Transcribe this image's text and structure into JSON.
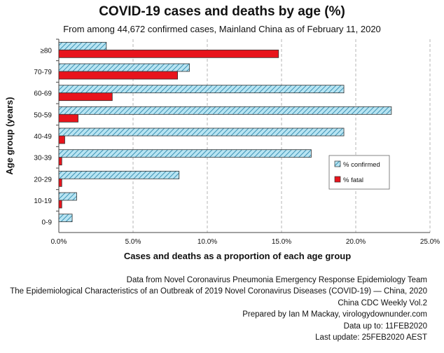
{
  "chart_data": {
    "type": "bar",
    "orientation": "horizontal",
    "title": "COVID-19 cases and deaths by age (%)",
    "subtitle": "From among 44,672 confirmed cases, Mainland China as of February 11, 2020",
    "xlabel": "Cases and deaths as a proportion of each age group",
    "ylabel": "Age group (years)",
    "categories": [
      "≥80",
      "70-79",
      "60-69",
      "50-59",
      "40-49",
      "30-39",
      "20-29",
      "10-19",
      "0-9"
    ],
    "series": [
      {
        "name": "% confirmed",
        "values": [
          3.2,
          8.8,
          19.2,
          22.4,
          19.2,
          17.0,
          8.1,
          1.2,
          0.9
        ]
      },
      {
        "name": "% fatal",
        "values": [
          14.8,
          8.0,
          3.6,
          1.3,
          0.4,
          0.2,
          0.2,
          0.2,
          0.0
        ]
      }
    ],
    "xlim": [
      0,
      25
    ],
    "xticks": [
      "0.0%",
      "5.0%",
      "10.0%",
      "15.0%",
      "20.0%",
      "25.0%"
    ],
    "grid": "vertical dashed",
    "legend_position": "right"
  },
  "colors": {
    "confirmed_fill": "#b8e4f2",
    "confirmed_hatch": "#1f7fa6",
    "fatal": "#e8141c",
    "bar_edge": "#333333"
  },
  "footer": [
    "Data from Novel Coronavirus Pneumonia Emergency Response Epidemiology Team",
    "The Epidemiological Characteristics of an Outbreak of 2019 Novel Coronavirus Diseases (COVID-19) — China, 2020",
    "China CDC Weekly Vol.2",
    "Prepared by Ian M Mackay, virologydownunder.com",
    "Data up to: 11FEB2020",
    "Last update: 25FEB2020 AEST"
  ]
}
